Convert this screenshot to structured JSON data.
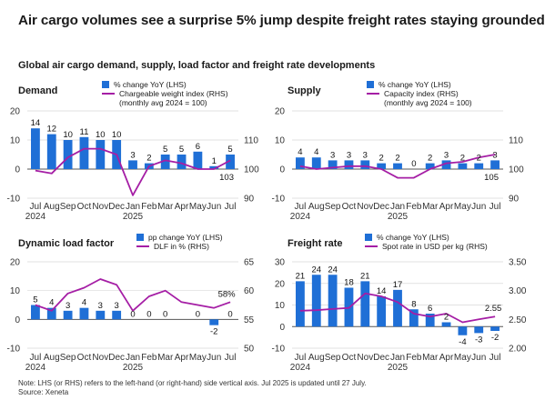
{
  "headline": "Air cargo volumes see a surprise 5% jump despite freight rates staying grounded",
  "subtitle": "Global air cargo demand, supply, load factor and freight rate developments",
  "note": "Note: LHS (or RHS) refers to the left-hand (or right-hand) side vertical axis. Jul 2025 is updated until 27 July.",
  "source": "Source: Xeneta",
  "colors": {
    "bar": "#1f6fd6",
    "line": "#a51ea5",
    "grid": "#d9d9d9",
    "axis": "#333333"
  },
  "chart_data": [
    {
      "type": "bar",
      "title": "Demand",
      "categories": [
        "Jul",
        "Aug",
        "Sep",
        "Oct",
        "Nov",
        "Dec",
        "Jan",
        "Feb",
        "Mar",
        "Apr",
        "May",
        "Jun",
        "Jul"
      ],
      "year_labels": [
        "2024",
        "",
        "",
        "",
        "",
        "",
        "2025",
        "",
        "",
        "",
        "",
        "",
        ""
      ],
      "ylim": [
        -10,
        20
      ],
      "yticks": [
        -10,
        0,
        10,
        20
      ],
      "y2lim": [
        90,
        120
      ],
      "y2ticks": [
        90,
        100,
        110
      ],
      "series": [
        {
          "name": "% change YoY (LHS)",
          "type": "bar",
          "axis": "left",
          "values": [
            14,
            12,
            10,
            11,
            10,
            10,
            3,
            2,
            5,
            5,
            6,
            1,
            5
          ],
          "labels": [
            "14",
            "12",
            "10",
            "11",
            "10",
            "10",
            "3",
            "2",
            "5",
            "5",
            "6",
            "1",
            "5"
          ]
        },
        {
          "name": "Chargeable weight index (RHS)\n(monthly avg 2024 = 100)",
          "type": "line",
          "axis": "right",
          "values": [
            99.5,
            98.5,
            104,
            107,
            107,
            105,
            91,
            101,
            103,
            102,
            100,
            100,
            103
          ],
          "end_label": "103"
        }
      ]
    },
    {
      "type": "bar",
      "title": "Supply",
      "categories": [
        "Jul",
        "Aug",
        "Sep",
        "Oct",
        "Nov",
        "Dec",
        "Jan",
        "Feb",
        "Mar",
        "Apr",
        "May",
        "Jun",
        "Jul"
      ],
      "year_labels": [
        "2024",
        "",
        "",
        "",
        "",
        "",
        "2025",
        "",
        "",
        "",
        "",
        "",
        ""
      ],
      "ylim": [
        -10,
        20
      ],
      "yticks": [
        -10,
        0,
        10,
        20
      ],
      "y2lim": [
        90,
        120
      ],
      "y2ticks": [
        90,
        100,
        110
      ],
      "series": [
        {
          "name": "% change YoY (LHS)",
          "type": "bar",
          "axis": "left",
          "values": [
            4,
            4,
            3,
            3,
            3,
            2,
            2,
            0,
            2,
            3,
            2,
            2,
            3
          ],
          "labels": [
            "4",
            "4",
            "3",
            "3",
            "3",
            "2",
            "2",
            "0",
            "2",
            "3",
            "2",
            "2",
            "3"
          ]
        },
        {
          "name": "Capacity index (RHS)\n(monthly avg 2024 = 100)",
          "type": "line",
          "axis": "right",
          "values": [
            101,
            100,
            100.5,
            101,
            101,
            100,
            97,
            97,
            100,
            102,
            102.5,
            104,
            105
          ],
          "end_label": "105"
        }
      ]
    },
    {
      "type": "bar",
      "title": "Dynamic load factor",
      "categories": [
        "Jul",
        "Aug",
        "Sep",
        "Oct",
        "Nov",
        "Dec",
        "Jan",
        "Feb",
        "Mar",
        "Apr",
        "May",
        "Jun",
        "Jul"
      ],
      "year_labels": [
        "2024",
        "",
        "",
        "",
        "",
        "",
        "2025",
        "",
        "",
        "",
        "",
        "",
        ""
      ],
      "ylim": [
        -10,
        20
      ],
      "yticks": [
        -10,
        0,
        10,
        20
      ],
      "y2lim": [
        50,
        65
      ],
      "y2ticks": [
        50,
        55,
        60,
        65
      ],
      "series": [
        {
          "name": "pp change YoY (LHS)",
          "type": "bar",
          "axis": "left",
          "values": [
            5,
            4,
            3,
            4,
            3,
            3,
            0,
            0,
            0,
            null,
            0,
            -2,
            0
          ],
          "labels": [
            "5",
            "4",
            "3",
            "4",
            "3",
            "3",
            "0",
            "0",
            "0",
            "",
            "0",
            "-2",
            "0"
          ]
        },
        {
          "name": "DLF in % (RHS)",
          "type": "line",
          "axis": "right",
          "values": [
            57.5,
            56.5,
            59.5,
            60.5,
            62,
            61,
            56.5,
            59,
            60,
            58,
            57.5,
            57,
            58
          ],
          "end_label": "58%"
        }
      ]
    },
    {
      "type": "bar",
      "title": "Freight rate",
      "categories": [
        "Jul",
        "Aug",
        "Sep",
        "Oct",
        "Nov",
        "Dec",
        "Jan",
        "Feb",
        "Mar",
        "Apr",
        "May",
        "Jun",
        "Jul"
      ],
      "year_labels": [
        "2024",
        "",
        "",
        "",
        "",
        "",
        "2025",
        "",
        "",
        "",
        "",
        "",
        ""
      ],
      "ylim": [
        -10,
        30
      ],
      "yticks": [
        -10,
        0,
        10,
        20,
        30
      ],
      "y2lim": [
        2.0,
        3.5
      ],
      "y2ticks": [
        "2.00",
        "2.50",
        "3.00",
        "3.50"
      ],
      "series": [
        {
          "name": "% change YoY (LHS)",
          "type": "bar",
          "axis": "left",
          "values": [
            21,
            24,
            24,
            18,
            21,
            14,
            17,
            8,
            6,
            2,
            -4,
            -3,
            -2
          ],
          "labels": [
            "21",
            "24",
            "24",
            "18",
            "21",
            "14",
            "17",
            "8",
            "6",
            "2",
            "-4",
            "-3",
            "-2"
          ]
        },
        {
          "name": "Spot rate in USD per kg (RHS)",
          "type": "line",
          "axis": "right",
          "values": [
            2.65,
            2.66,
            2.68,
            2.7,
            2.95,
            2.9,
            2.8,
            2.6,
            2.55,
            2.6,
            2.45,
            2.5,
            2.55
          ],
          "end_label": "2.55"
        }
      ]
    }
  ]
}
